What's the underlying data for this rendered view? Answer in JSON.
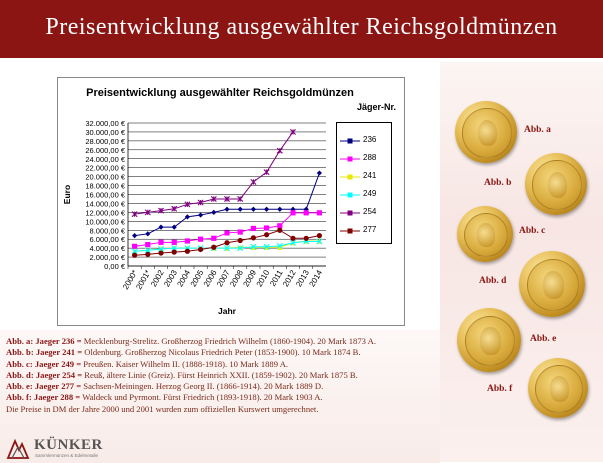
{
  "header": {
    "title": "Preisentwicklung  ausgewählter  Reichsgoldmünzen"
  },
  "chart_data": {
    "type": "line",
    "title": "Preisentwicklung ausgewählter Reichsgoldmünzen",
    "subtitle": "Jäger-Nr.",
    "xlabel": "Jahr",
    "ylabel": "Euro",
    "ylim": [
      0,
      32000
    ],
    "y_ticks": [
      "0,00 €",
      "2.000,00 €",
      "4.000,00 €",
      "6.000,00 €",
      "8.000,00 €",
      "10.000,00 €",
      "12.000,00 €",
      "14.000,00 €",
      "16.000,00 €",
      "18.000,00 €",
      "20.000,00 €",
      "22.000,00 €",
      "24.000,00 €",
      "26.000,00 €",
      "28.000,00 €",
      "30.000,00 €",
      "32.000,00 €"
    ],
    "categories": [
      "2000*",
      "2001*",
      "2002",
      "2003",
      "2004",
      "2005",
      "2006",
      "2007",
      "2008",
      "2009",
      "2010",
      "2011",
      "2012",
      "2013",
      "2014"
    ],
    "series": [
      {
        "name": "236",
        "color": "#000080",
        "marker": "diamond",
        "values": [
          6800,
          7200,
          8700,
          8700,
          11000,
          11400,
          12000,
          12700,
          12700,
          12700,
          12700,
          12700,
          12700,
          12700,
          20800
        ]
      },
      {
        "name": "288",
        "color": "#ff00ff",
        "marker": "square",
        "values": [
          4400,
          4800,
          5300,
          5300,
          5600,
          6000,
          6200,
          7400,
          7600,
          8400,
          8500,
          9000,
          11900,
          11900,
          11900
        ]
      },
      {
        "name": "241",
        "color": "#e8e800",
        "marker": "triangle",
        "values": [
          3300,
          3500,
          3900,
          4000,
          4000,
          4000,
          4000,
          4000,
          4200,
          4200,
          4200,
          4200,
          5200,
          5600,
          5600
        ]
      },
      {
        "name": "249",
        "color": "#00ffff",
        "marker": "x",
        "values": [
          3300,
          3500,
          3800,
          4000,
          4000,
          4000,
          4000,
          4000,
          4000,
          4300,
          4300,
          4500,
          5200,
          5500,
          5500
        ]
      },
      {
        "name": "254",
        "color": "#800080",
        "marker": "star",
        "values": [
          11600,
          12000,
          12400,
          12800,
          13800,
          14200,
          15000,
          15000,
          15000,
          18800,
          21000,
          25800,
          30000,
          null,
          null
        ]
      },
      {
        "name": "277",
        "color": "#800000",
        "marker": "circle",
        "values": [
          2400,
          2600,
          2900,
          3100,
          3300,
          3700,
          4200,
          5200,
          5700,
          6300,
          7000,
          8000,
          6200,
          6200,
          6800
        ]
      }
    ]
  },
  "notes": [
    {
      "key": "Abb. a: Jaeger 236 =",
      "text": " Mecklenburg-Strelitz. Großherzog Friedrich Wilhelm (1860-1904). 20 Mark 1873 A."
    },
    {
      "key": "Abb. b: Jaeger 241 =",
      "text": " Oldenburg. Großherzog Nicolaus Friedrich Peter (1853-1900). 10 Mark 1874 B."
    },
    {
      "key": "Abb. c: Jaeger 249 =",
      "text": " Preußen. Kaiser Wilhelm II.  (1888-1918). 10 Mark 1889 A."
    },
    {
      "key": "Abb. d: Jaeger 254 =",
      "text": " Reuß, ältere Linie (Greiz). Fürst Heinrich XXII.  (1859-1902). 20 Mark 1875 B."
    },
    {
      "key": "Abb. e: Jaeger 277 =",
      "text": " Sachsen-Meiningen. Herzog Georg II.  (1866-1914). 20 Mark 1889 D."
    },
    {
      "key": "Abb. f: Jaeger 288 =",
      "text": " Waldeck und Pyrmont. Fürst Friedrich (1893-1918). 20 Mark 1903 A."
    }
  ],
  "footnote": "Die Preise in DM der Jahre 2000 und 2001 wurden zum offiziellen Kurswert umgerechnet.",
  "coins": [
    {
      "label": "Abb. a"
    },
    {
      "label": "Abb. b"
    },
    {
      "label": "Abb. c"
    },
    {
      "label": "Abb. d"
    },
    {
      "label": "Abb. e"
    },
    {
      "label": "Abb. f"
    }
  ],
  "logo": {
    "name": "KÜNKER",
    "tagline": "Sammlermünzen & Edelmetalle"
  }
}
